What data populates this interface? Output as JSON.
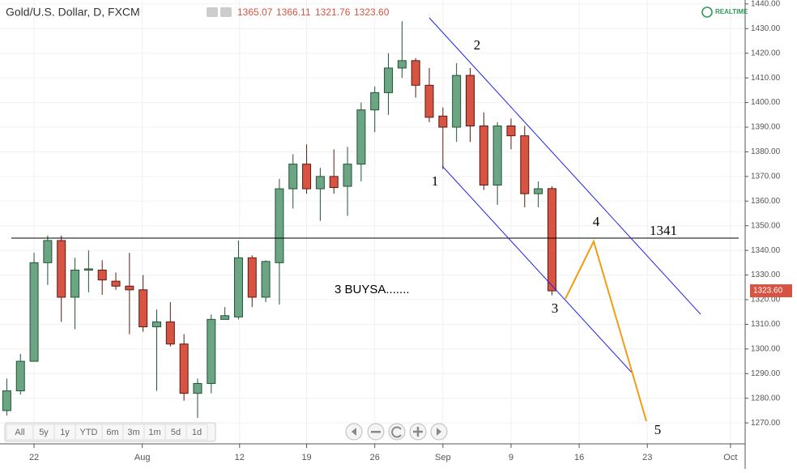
{
  "chart_data": {
    "type": "candlestick",
    "title": "Gold/U.S. Dollar, D, FXCM",
    "ohlc_labels": [
      "1365.07",
      "1366.11",
      "1321.76",
      "1323.60"
    ],
    "realtime": "REALTIME",
    "open": [
      1275,
      1283,
      1295,
      1335,
      1344,
      1321,
      1332,
      1332,
      1327.5,
      1325.5,
      1324,
      1309,
      1311,
      1302,
      1282,
      1286,
      1312,
      1313,
      1337,
      1321,
      1335,
      1365,
      1375,
      1365,
      1370,
      1366,
      1375,
      1397,
      1404,
      1414,
      1417,
      1407,
      1394.5,
      1390,
      1411,
      1390.5,
      1366.5,
      1390.5,
      1386.5,
      1363,
      1365.07
    ],
    "high": [
      1288,
      1298,
      1339,
      1346,
      1346,
      1337,
      1340,
      1336,
      1331,
      1339,
      1330,
      1316,
      1319,
      1306,
      1288,
      1314,
      1317,
      1344,
      1338,
      1336,
      1369,
      1379,
      1383,
      1373.5,
      1381,
      1382,
      1400,
      1406.5,
      1420,
      1433,
      1418,
      1414,
      1398,
      1416,
      1414,
      1396,
      1392,
      1393.5,
      1390.5,
      1368,
      1366.11
    ],
    "low": [
      1273,
      1281.5,
      1295,
      1326,
      1311,
      1308,
      1323,
      1322,
      1324,
      1306,
      1307,
      1283,
      1301,
      1279,
      1272,
      1282,
      1312,
      1312,
      1317,
      1319,
      1318,
      1357,
      1363,
      1352,
      1363,
      1354,
      1368,
      1388,
      1395,
      1410,
      1402,
      1392,
      1373,
      1384,
      1384,
      1364.5,
      1358.5,
      1381,
      1357.5,
      1357.5,
      1321.76
    ],
    "close": [
      1283,
      1295,
      1335,
      1344,
      1321,
      1332,
      1332.5,
      1328,
      1325.5,
      1324,
      1309,
      1311,
      1302,
      1282,
      1286,
      1312,
      1313.5,
      1337,
      1321,
      1335.5,
      1365,
      1375,
      1365,
      1370,
      1365.5,
      1375,
      1397,
      1404,
      1414,
      1417,
      1407,
      1394,
      1390,
      1411,
      1390.5,
      1366.5,
      1390.5,
      1386.5,
      1363,
      1365,
      1323.6
    ],
    "up_color": "#6ba583",
    "up_border": "#225437",
    "down_color": "#d75442",
    "down_border": "#5b1a13",
    "last_price": {
      "value": 1323.6,
      "label": "1323.60"
    },
    "ylim": [
      1261.5,
      1441.6
    ],
    "yticks": [
      {
        "value": 1270,
        "label": "1270.00"
      },
      {
        "value": 1280,
        "label": "1280.00"
      },
      {
        "value": 1290,
        "label": "1290.00"
      },
      {
        "value": 1300,
        "label": "1300.00"
      },
      {
        "value": 1310,
        "label": "1310.00"
      },
      {
        "value": 1320,
        "label": "1320.00"
      },
      {
        "value": 1330,
        "label": "1330.00"
      },
      {
        "value": 1340,
        "label": "1340.00"
      },
      {
        "value": 1350,
        "label": "1350.00"
      },
      {
        "value": 1360,
        "label": "1360.00"
      },
      {
        "value": 1370,
        "label": "1370.00"
      },
      {
        "value": 1380,
        "label": "1380.00"
      },
      {
        "value": 1390,
        "label": "1390.00"
      },
      {
        "value": 1400,
        "label": "1400.00"
      },
      {
        "value": 1410,
        "label": "1410.00"
      },
      {
        "value": 1420,
        "label": "1420.00"
      },
      {
        "value": 1430,
        "label": "1430.00"
      },
      {
        "value": 1440,
        "label": "1440.00"
      }
    ],
    "xlim": [
      -0.5,
      54
    ],
    "xticks": [
      {
        "value": 2,
        "label": "22"
      },
      {
        "value": 9.94,
        "label": "Aug"
      },
      {
        "value": 17.08,
        "label": "12"
      },
      {
        "value": 22,
        "label": "19"
      },
      {
        "value": 27,
        "label": "26"
      },
      {
        "value": 32,
        "label": "Sep"
      },
      {
        "value": 37,
        "label": "9"
      },
      {
        "value": 42,
        "label": "16"
      },
      {
        "value": 47,
        "label": "23"
      },
      {
        "value": 53.1,
        "label": "Oct"
      }
    ],
    "annotations": [
      "1",
      "2",
      "3",
      "4",
      "5",
      "1341",
      "3 BUYSA......."
    ],
    "range_buttons": [
      "All",
      "5y",
      "1y",
      "YTD",
      "6m",
      "3m",
      "1m",
      "5d",
      "1d"
    ]
  }
}
